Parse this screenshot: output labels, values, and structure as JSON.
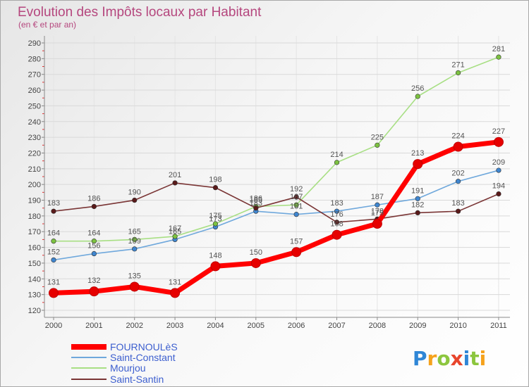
{
  "chart_data": {
    "type": "line",
    "title": "Evolution des Impôts locaux par Habitant",
    "subtitle": "(en € et par an)",
    "xlabel": "",
    "ylabel": "",
    "categories": [
      "2000",
      "2001",
      "2002",
      "2003",
      "2004",
      "2005",
      "2006",
      "2007",
      "2008",
      "2009",
      "2010",
      "2011"
    ],
    "yticks": [
      120,
      130,
      140,
      150,
      160,
      170,
      180,
      190,
      200,
      210,
      220,
      230,
      240,
      250,
      260,
      270,
      280,
      290
    ],
    "ylim": [
      120,
      290
    ],
    "grid": true,
    "legend_position": "bottom-left",
    "series": [
      {
        "name": "FOURNOULèS",
        "color": "#ff0000",
        "marker_color": "#e60000",
        "highlighted": true,
        "values": [
          131,
          132,
          135,
          131,
          148,
          150,
          157,
          168,
          175,
          213,
          224,
          227
        ]
      },
      {
        "name": "Saint-Constant",
        "color": "#6fa8dc",
        "marker_color": "#3f86d0",
        "highlighted": false,
        "values": [
          152,
          156,
          159,
          165,
          173,
          183,
          181,
          183,
          187,
          191,
          202,
          209
        ]
      },
      {
        "name": "Mourjou",
        "color": "#a8df84",
        "marker_color": "#7cc240",
        "highlighted": false,
        "values": [
          164,
          164,
          165,
          167,
          175,
          186,
          187,
          214,
          225,
          256,
          271,
          281
        ]
      },
      {
        "name": "Saint-Santin",
        "color": "#7a3535",
        "marker_color": "#5a1a1a",
        "highlighted": false,
        "values": [
          183,
          186,
          190,
          201,
          198,
          185,
          192,
          176,
          178,
          182,
          183,
          194
        ]
      }
    ]
  },
  "logo": {
    "text": "Proxiti",
    "letter_colors": [
      "#2f86d6",
      "#f5a21c",
      "#8cc63e",
      "#e8452c",
      "#2f86d6",
      "#8cc63e",
      "#f5a21c"
    ]
  }
}
